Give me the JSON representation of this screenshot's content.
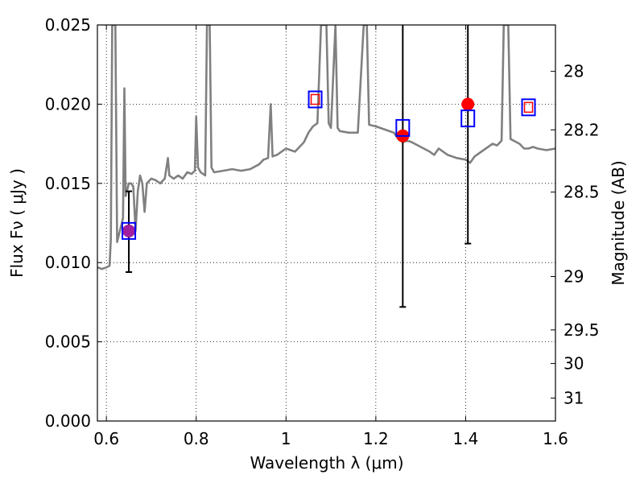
{
  "chart_data": {
    "type": "scatter",
    "xlabel": "Wavelength  λ (μm)",
    "ylabel": "Flux  Fν  ( μJy )",
    "ylabel_right": "Magnitude (AB)",
    "xlim": [
      0.58,
      1.6
    ],
    "ylim": [
      0.0,
      0.025
    ],
    "grid": true,
    "x_ticks": [
      {
        "value": 0.6,
        "label": "0.6"
      },
      {
        "value": 0.8,
        "label": "0.8"
      },
      {
        "value": 1.0,
        "label": "1"
      },
      {
        "value": 1.2,
        "label": "1.2"
      },
      {
        "value": 1.4,
        "label": "1.4"
      },
      {
        "value": 1.6,
        "label": "1.6"
      }
    ],
    "y_ticks": [
      {
        "value": 0.0,
        "label": "0.000"
      },
      {
        "value": 0.005,
        "label": "0.005"
      },
      {
        "value": 0.01,
        "label": "0.010"
      },
      {
        "value": 0.015,
        "label": "0.015"
      },
      {
        "value": 0.02,
        "label": "0.020"
      },
      {
        "value": 0.025,
        "label": "0.025"
      }
    ],
    "right_ticks": [
      {
        "flux": 0.02207,
        "label": "28"
      },
      {
        "flux": 0.01838,
        "label": "28.2"
      },
      {
        "flux": 0.01445,
        "label": "28.5"
      },
      {
        "flux": 0.00912,
        "label": "29"
      },
      {
        "flux": 0.00575,
        "label": "29.5"
      },
      {
        "flux": 0.00363,
        "label": "30"
      },
      {
        "flux": 0.00145,
        "label": "31"
      }
    ],
    "colors": {
      "spectrum": "#808080",
      "observed": "#ff0000",
      "observed_first": "#a020a0",
      "model_box": "#0000ff",
      "model_box_inner": "#ff0000",
      "errorbar": "#000000"
    },
    "series": [
      {
        "kind": "spectrum",
        "points": [
          [
            0.58,
            0.0097
          ],
          [
            0.59,
            0.0096
          ],
          [
            0.6,
            0.0097
          ],
          [
            0.607,
            0.0098
          ],
          [
            0.61,
            0.0115
          ],
          [
            0.613,
            0.025
          ],
          [
            0.62,
            0.025
          ],
          [
            0.624,
            0.0113
          ],
          [
            0.63,
            0.012
          ],
          [
            0.637,
            0.0128
          ],
          [
            0.64,
            0.021
          ],
          [
            0.643,
            0.0142
          ],
          [
            0.65,
            0.015
          ],
          [
            0.655,
            0.015
          ],
          [
            0.66,
            0.0148
          ],
          [
            0.665,
            0.012
          ],
          [
            0.67,
            0.0145
          ],
          [
            0.675,
            0.0155
          ],
          [
            0.68,
            0.015
          ],
          [
            0.685,
            0.0132
          ],
          [
            0.69,
            0.015
          ],
          [
            0.7,
            0.0153
          ],
          [
            0.71,
            0.0152
          ],
          [
            0.72,
            0.015
          ],
          [
            0.73,
            0.0153
          ],
          [
            0.737,
            0.0166
          ],
          [
            0.74,
            0.0155
          ],
          [
            0.75,
            0.0153
          ],
          [
            0.76,
            0.0155
          ],
          [
            0.77,
            0.0153
          ],
          [
            0.78,
            0.0157
          ],
          [
            0.79,
            0.0156
          ],
          [
            0.797,
            0.0158
          ],
          [
            0.8,
            0.0192
          ],
          [
            0.804,
            0.016
          ],
          [
            0.81,
            0.0157
          ],
          [
            0.82,
            0.0155
          ],
          [
            0.824,
            0.025
          ],
          [
            0.83,
            0.025
          ],
          [
            0.834,
            0.016
          ],
          [
            0.84,
            0.0157
          ],
          [
            0.86,
            0.0158
          ],
          [
            0.88,
            0.0159
          ],
          [
            0.9,
            0.0158
          ],
          [
            0.92,
            0.0159
          ],
          [
            0.94,
            0.0162
          ],
          [
            0.95,
            0.0165
          ],
          [
            0.96,
            0.0166
          ],
          [
            0.966,
            0.02
          ],
          [
            0.97,
            0.0167
          ],
          [
            0.98,
            0.0168
          ],
          [
            1.0,
            0.0172
          ],
          [
            1.02,
            0.017
          ],
          [
            1.04,
            0.0176
          ],
          [
            1.05,
            0.0182
          ],
          [
            1.06,
            0.0186
          ],
          [
            1.07,
            0.0188
          ],
          [
            1.078,
            0.025
          ],
          [
            1.09,
            0.025
          ],
          [
            1.095,
            0.0188
          ],
          [
            1.1,
            0.0185
          ],
          [
            1.11,
            0.025
          ],
          [
            1.115,
            0.0185
          ],
          [
            1.12,
            0.0183
          ],
          [
            1.14,
            0.0182
          ],
          [
            1.16,
            0.0182
          ],
          [
            1.173,
            0.025
          ],
          [
            1.18,
            0.025
          ],
          [
            1.185,
            0.0187
          ],
          [
            1.2,
            0.0186
          ],
          [
            1.22,
            0.0184
          ],
          [
            1.24,
            0.0182
          ],
          [
            1.25,
            0.0178
          ],
          [
            1.26,
            0.0176
          ],
          [
            1.27,
            0.0177
          ],
          [
            1.28,
            0.0176
          ],
          [
            1.3,
            0.0173
          ],
          [
            1.32,
            0.017
          ],
          [
            1.33,
            0.0168
          ],
          [
            1.34,
            0.0172
          ],
          [
            1.35,
            0.017
          ],
          [
            1.36,
            0.0168
          ],
          [
            1.38,
            0.0166
          ],
          [
            1.4,
            0.0165
          ],
          [
            1.41,
            0.0163
          ],
          [
            1.42,
            0.0167
          ],
          [
            1.44,
            0.0171
          ],
          [
            1.46,
            0.0175
          ],
          [
            1.47,
            0.0174
          ],
          [
            1.48,
            0.0177
          ],
          [
            1.485,
            0.025
          ],
          [
            1.495,
            0.025
          ],
          [
            1.5,
            0.0178
          ],
          [
            1.52,
            0.0175
          ],
          [
            1.53,
            0.0172
          ],
          [
            1.54,
            0.0172
          ],
          [
            1.55,
            0.0173
          ],
          [
            1.56,
            0.0172
          ],
          [
            1.58,
            0.0171
          ],
          [
            1.6,
            0.0172
          ]
        ]
      },
      {
        "kind": "observed",
        "points": [
          {
            "x": 0.65,
            "y": 0.012,
            "ylo": 0.0094,
            "yhi": 0.0145
          },
          {
            "x": 1.26,
            "y": 0.018,
            "ylo": 0.0072,
            "yhi": 0.025
          },
          {
            "x": 1.405,
            "y": 0.02,
            "ylo": 0.0112,
            "yhi": 0.025
          }
        ]
      },
      {
        "kind": "model",
        "points": [
          {
            "x": 0.65,
            "y": 0.012,
            "inner": false
          },
          {
            "x": 1.065,
            "y": 0.0203,
            "inner": true
          },
          {
            "x": 1.26,
            "y": 0.0185,
            "inner": false
          },
          {
            "x": 1.405,
            "y": 0.0191,
            "inner": false
          },
          {
            "x": 1.54,
            "y": 0.0198,
            "inner": true
          }
        ]
      }
    ]
  }
}
